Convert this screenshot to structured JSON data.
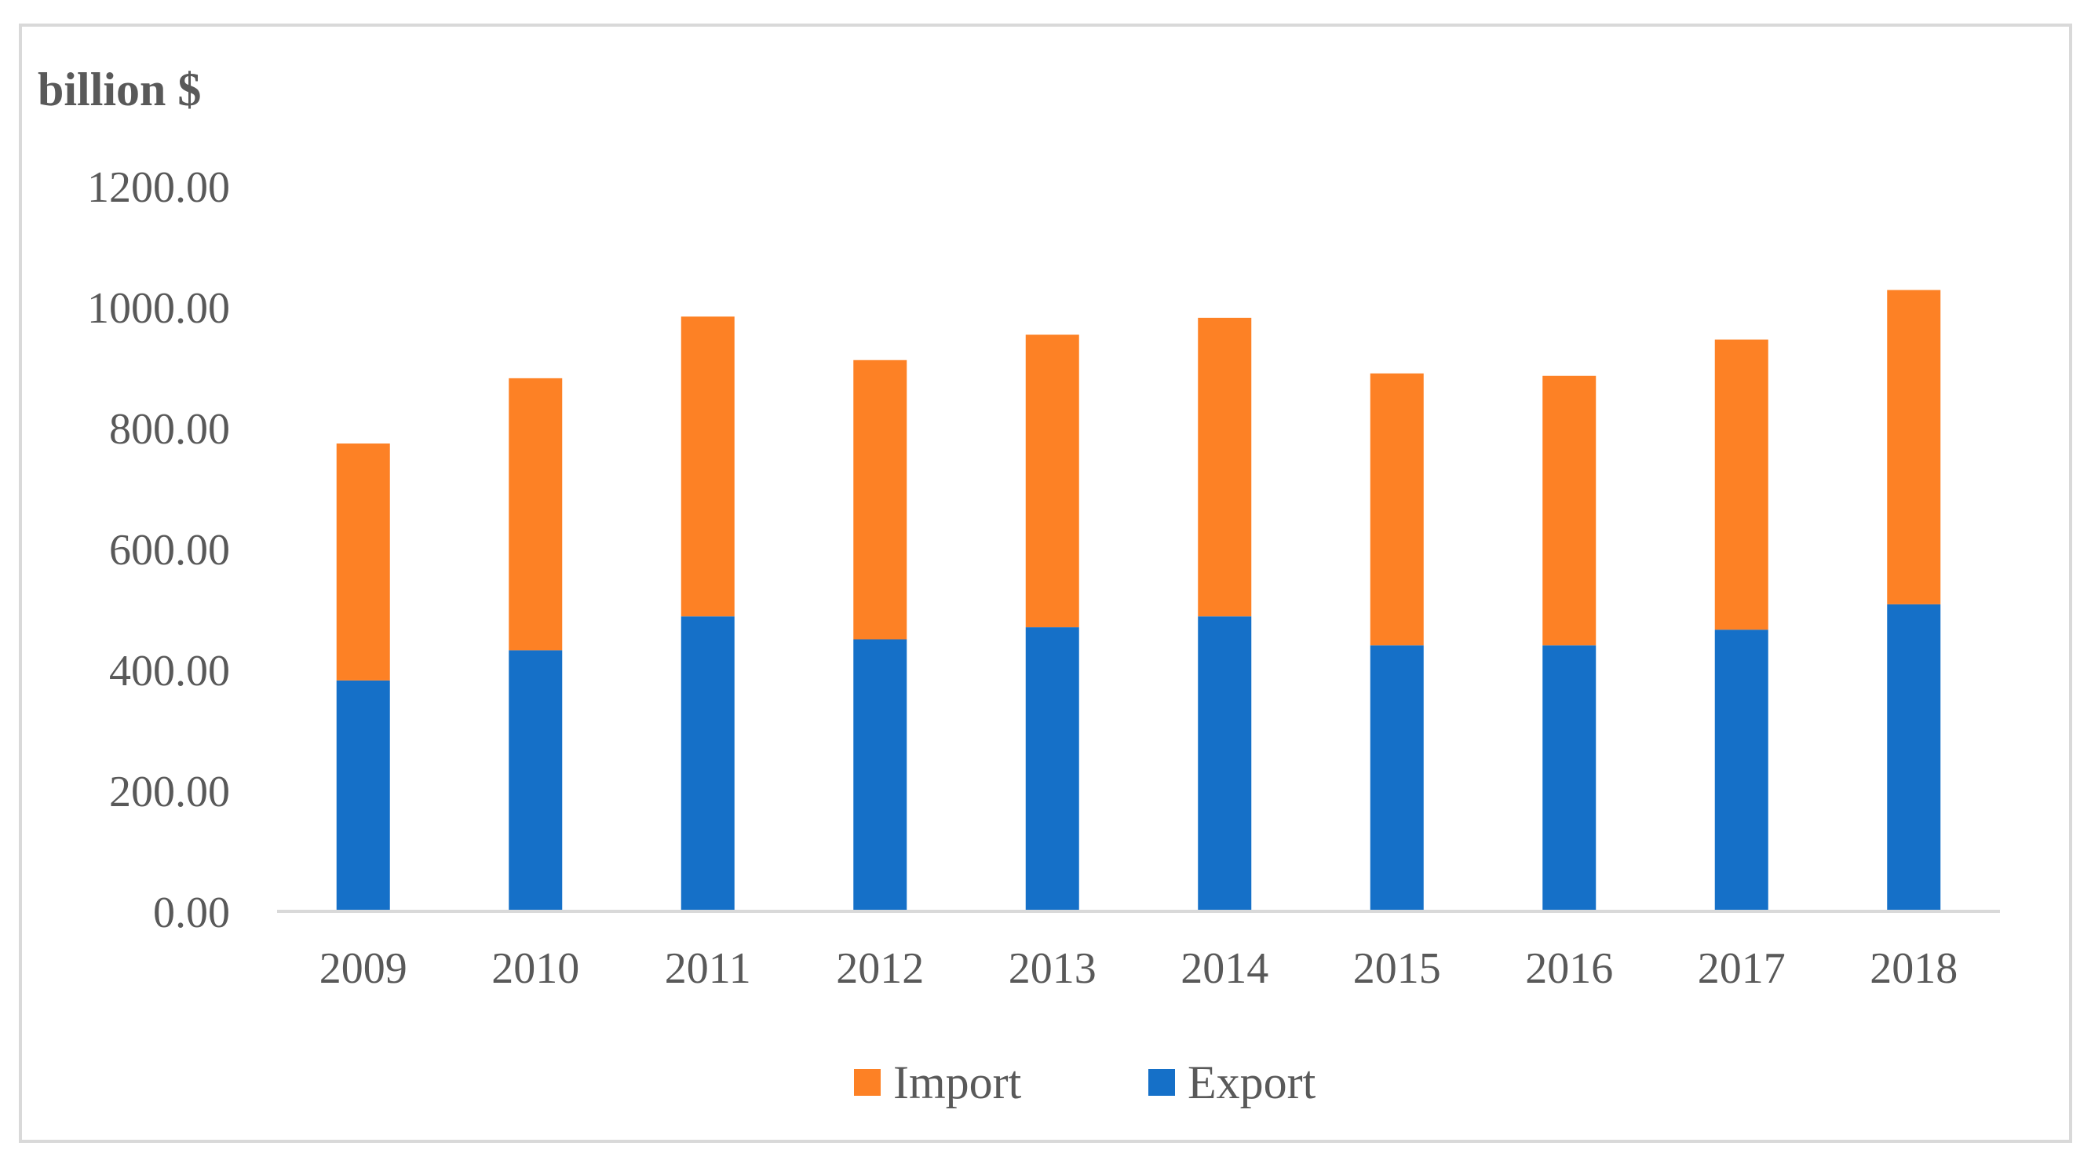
{
  "chart_data": {
    "type": "bar",
    "stacked": true,
    "title": "",
    "xlabel": "",
    "ylabel": "billion $",
    "ylim": [
      0,
      1200
    ],
    "yticks": [
      "0.00",
      "200.00",
      "400.00",
      "600.00",
      "800.00",
      "1000.00",
      "1200.00"
    ],
    "ytick_values": [
      0,
      200,
      400,
      600,
      800,
      1000,
      1200
    ],
    "grid": false,
    "legend_position": "bottom",
    "categories": [
      "2009",
      "2010",
      "2011",
      "2012",
      "2013",
      "2014",
      "2015",
      "2016",
      "2017",
      "2018"
    ],
    "series": [
      {
        "name": "Export",
        "color": "#1570c8",
        "values": [
          382,
          432,
          488,
          450,
          470,
          488,
          440,
          440,
          466,
          508
        ]
      },
      {
        "name": "Import",
        "color": "#fd8125",
        "values": [
          392,
          450,
          496,
          462,
          484,
          494,
          450,
          446,
          480,
          520
        ]
      }
    ],
    "legend": [
      "Import",
      "Export"
    ]
  }
}
